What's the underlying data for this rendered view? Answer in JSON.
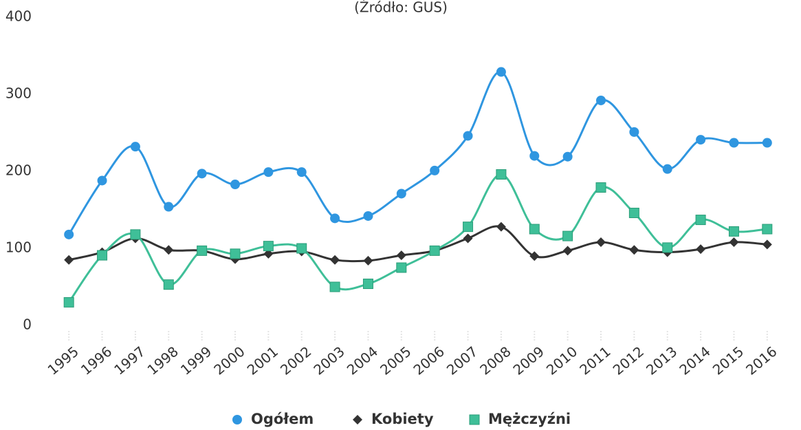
{
  "chart_data": {
    "type": "line",
    "subtitle": "(Źródło: GUS)",
    "categories": [
      "1995",
      "1996",
      "1997",
      "1998",
      "1999",
      "2000",
      "2001",
      "2002",
      "2003",
      "2004",
      "2005",
      "2006",
      "2007",
      "2008",
      "2009",
      "2010",
      "2011",
      "2012",
      "2013",
      "2014",
      "2015",
      "2016"
    ],
    "series": [
      {
        "name": "Ogółem",
        "color": "#2f96e0",
        "marker": "circle",
        "values": [
          118,
          188,
          232,
          154,
          197,
          183,
          199,
          199,
          139,
          142,
          171,
          201,
          246,
          329,
          220,
          219,
          292,
          251,
          203,
          241,
          237,
          237
        ]
      },
      {
        "name": "Kobiety",
        "color": "#333333",
        "marker": "diamond",
        "values": [
          85,
          95,
          113,
          98,
          97,
          86,
          93,
          96,
          85,
          84,
          91,
          97,
          113,
          128,
          90,
          97,
          108,
          98,
          95,
          99,
          108,
          105
        ]
      },
      {
        "name": "Mężczyźni",
        "color": "#3fbf98",
        "marker": "square",
        "values": [
          30,
          91,
          118,
          53,
          97,
          93,
          103,
          100,
          50,
          54,
          75,
          97,
          128,
          196,
          125,
          116,
          179,
          146,
          101,
          137,
          122,
          125
        ]
      }
    ],
    "ylim": [
      0,
      400
    ],
    "yticks": [
      0,
      100,
      200,
      300,
      400
    ],
    "grid": false,
    "legend": "bottom"
  }
}
